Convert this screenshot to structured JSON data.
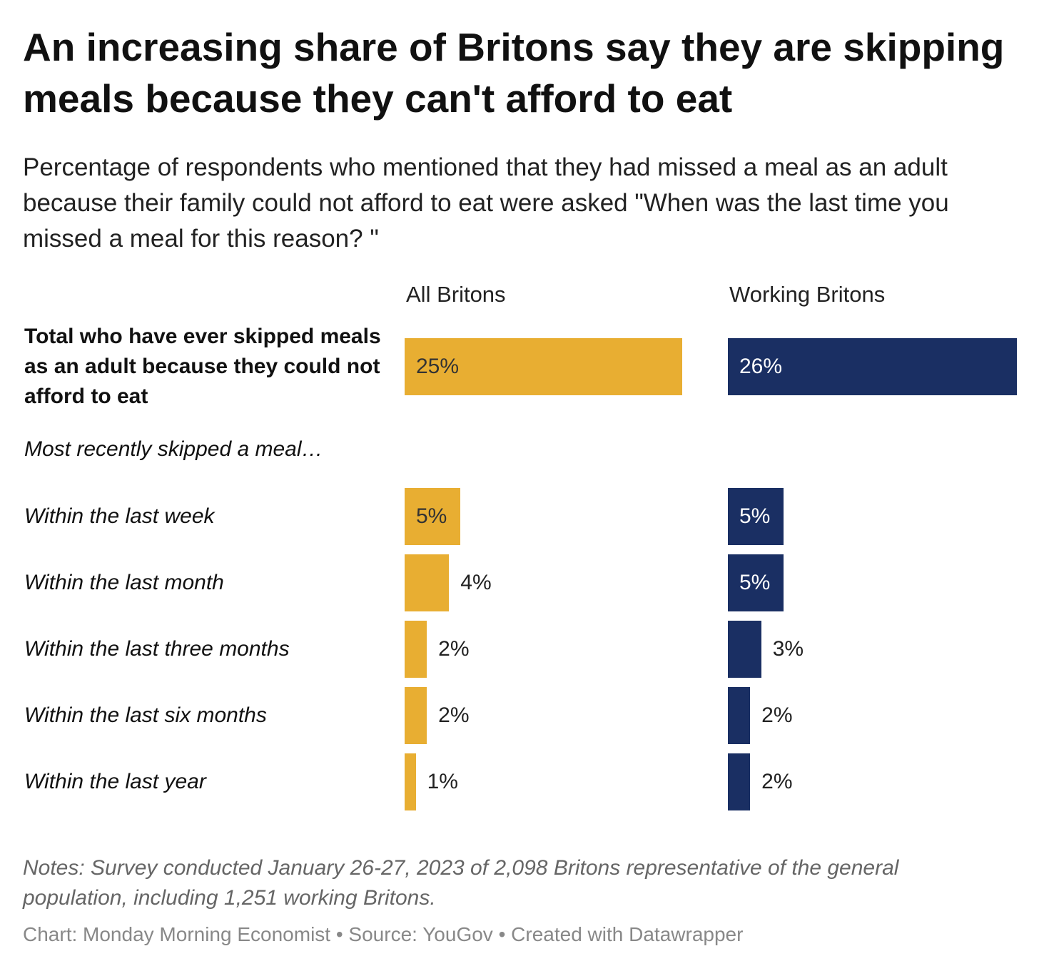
{
  "chart_data": {
    "type": "bar",
    "title": "An increasing share of Britons say they are skipping meals because they can't afford to eat",
    "subtitle": "Percentage of respondents who mentioned that they had missed a meal as an adult because their family could not afford to eat were asked \"When was the last time you missed a meal for this reason? \"",
    "categories": [
      "Total who have ever skipped meals as an adult because they could not afford to eat",
      "Most recently skipped a meal…",
      "Within the last week",
      "Within the last month",
      "Within the last three months",
      "Within the last six months",
      "Within the last year"
    ],
    "series": [
      {
        "name": "All Britons",
        "color": "#e8ae32",
        "values": [
          25,
          null,
          5,
          4,
          2,
          2,
          1
        ],
        "value_labels": [
          "25%",
          null,
          "5%",
          "4%",
          "2%",
          "2%",
          "1%"
        ]
      },
      {
        "name": "Working Britons",
        "color": "#1a2f63",
        "values": [
          26,
          null,
          5,
          5,
          3,
          2,
          2
        ],
        "value_labels": [
          "26%",
          null,
          "5%",
          "5%",
          "3%",
          "2%",
          "2%"
        ]
      }
    ],
    "notes": "Notes: Survey conducted January 26-27, 2023 of 2,098 Britons representative of the general population, including 1,251 working Britons.",
    "footer": "Chart: Monday Morning Economist • Source: YouGov • Created with Datawrapper"
  }
}
